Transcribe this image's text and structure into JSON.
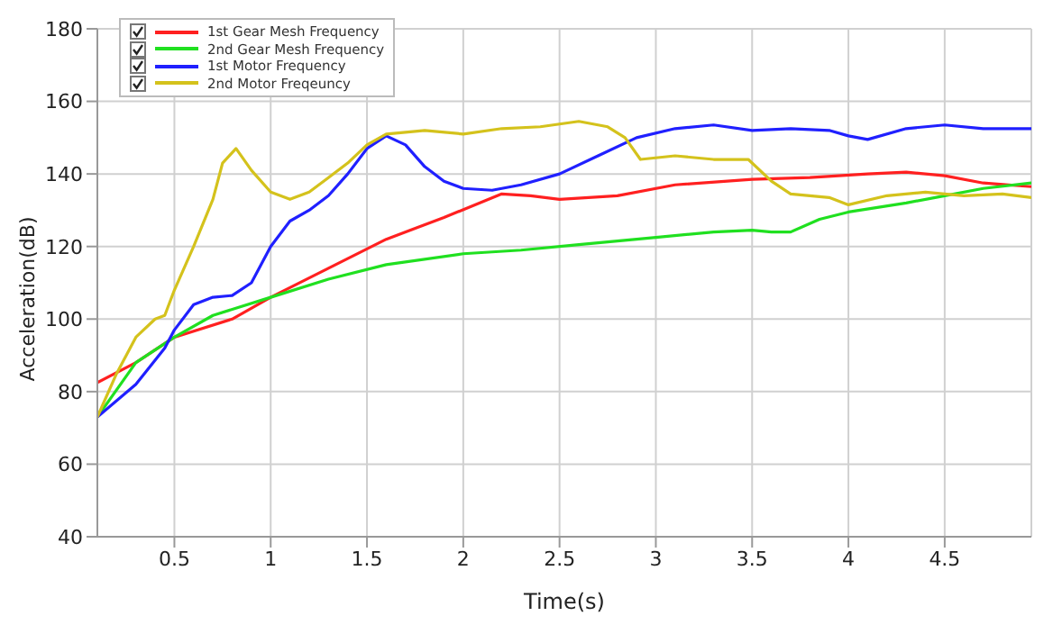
{
  "chart_data": {
    "type": "line",
    "xlabel": "Time(s)",
    "ylabel": "Acceleration(dB)",
    "xlim": [
      0.1,
      4.95
    ],
    "xticks": [
      0.5,
      1,
      1.5,
      2,
      2.5,
      3,
      3.5,
      4,
      4.5
    ],
    "ylim": [
      40,
      180
    ],
    "yticks": [
      40,
      60,
      80,
      100,
      120,
      140,
      160,
      180
    ],
    "grid": true,
    "legend": "top left",
    "marker": "none",
    "line_style": "solid",
    "series": [
      {
        "name": "1st Gear Mesh Frequency",
        "color": "#ff2020",
        "x": [
          0.1,
          0.3,
          0.5,
          0.8,
          1.0,
          1.3,
          1.6,
          1.9,
          2.2,
          2.35,
          2.5,
          2.8,
          3.1,
          3.5,
          3.8,
          4.1,
          4.3,
          4.5,
          4.7,
          4.95
        ],
        "values": [
          82.5,
          88,
          95,
          100,
          106,
          114,
          122,
          128,
          134.5,
          134,
          133,
          134,
          137,
          138.5,
          139,
          140,
          140.5,
          139.5,
          137.5,
          136.5
        ]
      },
      {
        "name": "2nd Gear Mesh Frequency",
        "color": "#20e020",
        "x": [
          0.1,
          0.3,
          0.5,
          0.7,
          1.0,
          1.3,
          1.6,
          2.0,
          2.3,
          2.6,
          3.0,
          3.3,
          3.5,
          3.6,
          3.7,
          3.85,
          4.0,
          4.3,
          4.5,
          4.7,
          4.95
        ],
        "values": [
          73,
          88,
          95,
          101,
          106,
          111,
          115,
          118,
          119,
          120.5,
          122.5,
          124,
          124.5,
          124,
          124,
          127.5,
          129.5,
          132,
          134,
          136,
          137.5
        ]
      },
      {
        "name": "1st Motor Frequency",
        "color": "#2020ff",
        "x": [
          0.1,
          0.3,
          0.45,
          0.5,
          0.6,
          0.7,
          0.8,
          0.9,
          1.0,
          1.1,
          1.2,
          1.3,
          1.4,
          1.5,
          1.6,
          1.7,
          1.8,
          1.9,
          2.0,
          2.15,
          2.3,
          2.5,
          2.7,
          2.9,
          3.1,
          3.3,
          3.5,
          3.7,
          3.9,
          4.0,
          4.1,
          4.3,
          4.5,
          4.7,
          4.95
        ],
        "values": [
          73,
          82,
          92,
          97,
          104,
          106,
          106.5,
          110,
          120,
          127,
          130,
          134,
          140,
          147,
          150.5,
          148,
          142,
          138,
          136,
          135.5,
          137,
          140,
          145,
          150,
          152.5,
          153.5,
          152,
          152.5,
          152,
          150.5,
          149.5,
          152.5,
          153.5,
          152.5,
          152.5
        ]
      },
      {
        "name": "2nd Motor Freqeuncy",
        "color": "#d4c21c",
        "x": [
          0.1,
          0.2,
          0.3,
          0.4,
          0.45,
          0.5,
          0.6,
          0.7,
          0.75,
          0.82,
          0.9,
          1.0,
          1.1,
          1.2,
          1.3,
          1.4,
          1.5,
          1.6,
          1.8,
          2.0,
          2.2,
          2.4,
          2.6,
          2.75,
          2.84,
          2.92,
          3.1,
          3.3,
          3.48,
          3.6,
          3.7,
          3.9,
          4.0,
          4.2,
          4.4,
          4.6,
          4.8,
          4.95
        ],
        "values": [
          73,
          85,
          95,
          100,
          101,
          108,
          120,
          133,
          143,
          147,
          141,
          135,
          133,
          135,
          139,
          143,
          148,
          151,
          152,
          151,
          152.5,
          153,
          154.5,
          153,
          150,
          144,
          145,
          144,
          144,
          138,
          134.5,
          133.5,
          131.5,
          134,
          135,
          134,
          134.5,
          133.5
        ]
      }
    ]
  }
}
